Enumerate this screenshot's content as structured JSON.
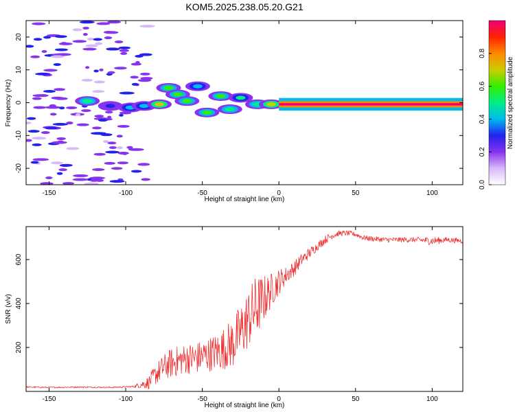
{
  "title": "KOM5.2025.238.05.20.G21",
  "colors": {
    "snr_line": "#ee3333",
    "axis": "#000000"
  },
  "chart_data": [
    {
      "type": "heatmap",
      "xlabel": "Height of straight line (km)",
      "ylabel": "Frequency (Hz)",
      "xlim": [
        -165,
        120
      ],
      "ylim": [
        -25,
        25
      ],
      "xticks": [
        -150,
        -100,
        -50,
        0,
        50,
        100
      ],
      "yticks": [
        -20,
        -10,
        0,
        10,
        20
      ],
      "colorbar": {
        "label": "Normalized spectral amplitude",
        "range": [
          0,
          1
        ],
        "ticks": [
          0.0,
          0.2,
          0.4,
          0.6,
          0.8
        ],
        "tick_labels": [
          "0.0",
          "0.2",
          "0.4",
          "0.6",
          "0.8"
        ],
        "colors": [
          "#ffffff",
          "#d8b8f8",
          "#8833ee",
          "#2222ee",
          "#00bbee",
          "#00ee88",
          "#33ee00",
          "#cccc00",
          "#ff8800",
          "#ff2200",
          "#ee0077"
        ]
      },
      "blobs": [
        {
          "x": -125,
          "f": 0.5,
          "a": 0.45
        },
        {
          "x": -110,
          "f": -1,
          "a": 0.2
        },
        {
          "x": -97,
          "f": -1.5,
          "a": 0.3
        },
        {
          "x": -88,
          "f": -1,
          "a": 0.35
        },
        {
          "x": -78,
          "f": -0.5,
          "a": 0.6
        },
        {
          "x": -72,
          "f": 4.5,
          "a": 0.5
        },
        {
          "x": -66,
          "f": 2.5,
          "a": 0.55
        },
        {
          "x": -60,
          "f": 0.5,
          "a": 0.5
        },
        {
          "x": -53,
          "f": 5,
          "a": 0.35
        },
        {
          "x": -47,
          "f": -3,
          "a": 0.55
        },
        {
          "x": -38,
          "f": 2,
          "a": 0.5
        },
        {
          "x": -32,
          "f": -2,
          "a": 0.45
        },
        {
          "x": -25,
          "f": 1.5,
          "a": 0.4
        },
        {
          "x": -14,
          "f": -0.5,
          "a": 0.45
        },
        {
          "x": -5,
          "f": -0.5,
          "a": 0.6
        }
      ],
      "band": {
        "x_start": 0,
        "x_end": 120,
        "f_center": -0.5,
        "f_halfwidth": 1.2,
        "amplitude": 0.9
      },
      "scatter_region": {
        "x_start": -165,
        "x_end": -85,
        "f_min": -25,
        "f_max": 25,
        "amplitude": 0.15
      }
    },
    {
      "type": "line",
      "xlabel": "Height of straight line (km)",
      "ylabel": "SNR (v/v)",
      "xlim": [
        -165,
        120
      ],
      "ylim": [
        0,
        750
      ],
      "xticks": [
        -150,
        -100,
        -50,
        0,
        50,
        100
      ],
      "yticks": [
        200,
        400,
        600
      ],
      "series": [
        {
          "x": [
            -165,
            -150,
            -130,
            -110,
            -95,
            -85,
            -80,
            -75,
            -70,
            -65,
            -60,
            -55,
            -50,
            -45,
            -40,
            -35,
            -30,
            -25,
            -20,
            -15,
            -10,
            -5,
            0,
            5,
            10,
            15,
            20,
            25,
            30,
            35,
            40,
            45,
            50,
            55,
            60,
            70,
            80,
            90,
            100,
            110,
            120
          ],
          "values": [
            20,
            18,
            20,
            18,
            22,
            40,
            80,
            110,
            130,
            140,
            150,
            150,
            160,
            170,
            180,
            200,
            220,
            270,
            330,
            380,
            420,
            460,
            500,
            530,
            560,
            600,
            630,
            660,
            690,
            710,
            720,
            720,
            715,
            700,
            695,
            690,
            690,
            690,
            685,
            690,
            685
          ],
          "noise": [
            3,
            3,
            3,
            3,
            4,
            30,
            50,
            60,
            70,
            70,
            70,
            75,
            75,
            80,
            90,
            100,
            120,
            130,
            140,
            150,
            110,
            80,
            60,
            40,
            35,
            30,
            25,
            20,
            20,
            15,
            12,
            12,
            12,
            12,
            12,
            12,
            12,
            12,
            20,
            12,
            12
          ]
        }
      ]
    }
  ]
}
